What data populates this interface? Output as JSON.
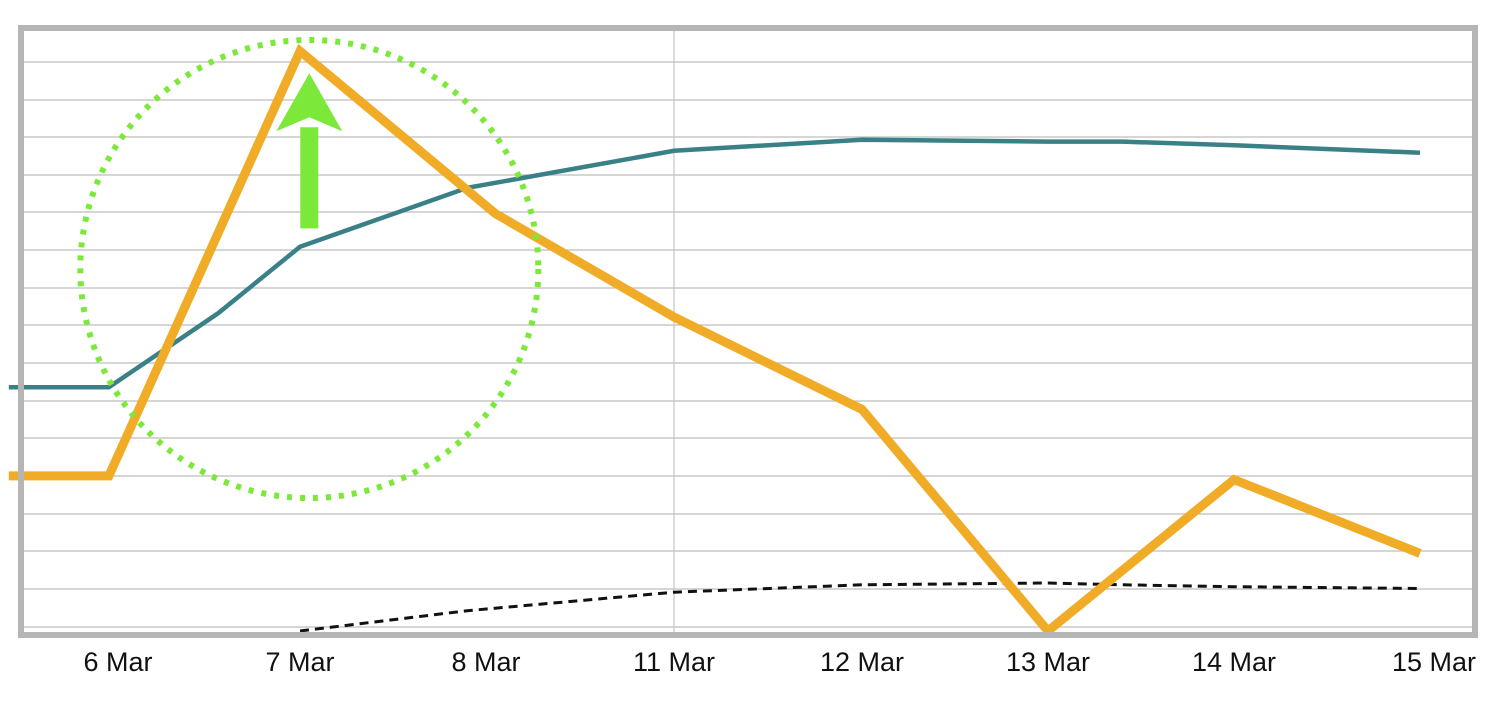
{
  "chart_data": {
    "type": "line",
    "categories": [
      "6 Mar",
      "7 Mar",
      "8 Mar",
      "11 Mar",
      "12 Mar",
      "13 Mar",
      "14 Mar",
      "15 Mar"
    ],
    "ylim": [
      0,
      16
    ],
    "grid": "horizontal lines, one vertical line at 11 Mar",
    "y_ticks_labeled": false,
    "series": [
      {
        "color": "#f0ac27",
        "style": "thick solid",
        "points": [
          [
            -0.6,
            4.2
          ],
          [
            -0.05,
            4.2
          ],
          [
            1.0,
            15.7
          ],
          [
            2.05,
            11.3
          ],
          [
            3.0,
            8.5
          ],
          [
            4.0,
            6.0
          ],
          [
            5.0,
            0.0
          ],
          [
            6.0,
            4.1
          ],
          [
            7.0,
            2.1
          ]
        ]
      },
      {
        "color": "#3a8087",
        "style": "solid",
        "points": [
          [
            -0.6,
            6.6
          ],
          [
            -0.05,
            6.6
          ],
          [
            0.55,
            8.6
          ],
          [
            1.0,
            10.4
          ],
          [
            1.9,
            12.0
          ],
          [
            3.0,
            13.0
          ],
          [
            4.0,
            13.3
          ],
          [
            5.0,
            13.25
          ],
          [
            5.4,
            13.25
          ],
          [
            6.0,
            13.15
          ],
          [
            7.0,
            12.95
          ]
        ]
      },
      {
        "color": "#111111",
        "style": "dotted",
        "points": [
          [
            1.0,
            0.0
          ],
          [
            1.9,
            0.55
          ],
          [
            3.0,
            1.05
          ],
          [
            4.0,
            1.25
          ],
          [
            5.0,
            1.3
          ],
          [
            5.4,
            1.25
          ],
          [
            6.0,
            1.2
          ],
          [
            7.0,
            1.15
          ]
        ]
      }
    ],
    "annotations": [
      {
        "type": "dotted-circle",
        "color": "#7be83a",
        "center": [
          1.05,
          9.8
        ],
        "radius_y_units": 6.2
      },
      {
        "type": "arrow-up",
        "color": "#7be83a",
        "from": [
          1.05,
          10.9
        ],
        "to": [
          1.05,
          15.1
        ]
      }
    ]
  }
}
